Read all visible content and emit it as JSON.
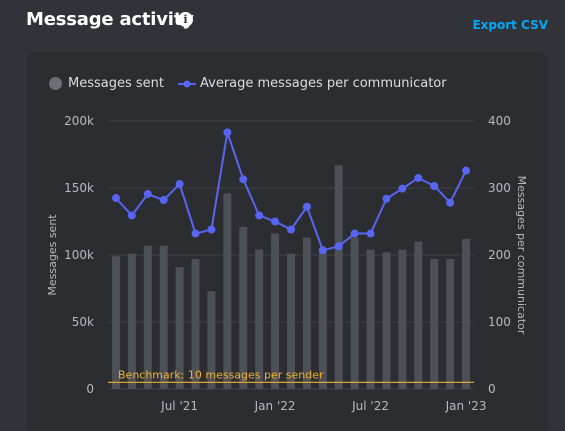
{
  "header": {
    "title": "Message activity",
    "info_icon": "info-icon",
    "export_label": "Export CSV"
  },
  "legend": {
    "series1": "Messages sent",
    "series2": "Average messages per communicator"
  },
  "colors": {
    "bar": "#4e5058",
    "line": "#5865f2",
    "benchmark": "#f0b232",
    "accent": "#00a8fc"
  },
  "chart_data": {
    "type": "bar",
    "ylabel": "Messages sent",
    "y2label": "Messages per communicator",
    "ylim": [
      0,
      200000
    ],
    "y2lim": [
      0,
      400
    ],
    "yticks": [
      "0",
      "50k",
      "100k",
      "150k",
      "200k"
    ],
    "y2ticks": [
      "0",
      "100",
      "200",
      "300",
      "400"
    ],
    "xtick_labels": [
      {
        "index": 4,
        "label": "Jul '21"
      },
      {
        "index": 10,
        "label": "Jan '22"
      },
      {
        "index": 16,
        "label": "Jul '22"
      },
      {
        "index": 22,
        "label": "Jan '23"
      }
    ],
    "series": [
      {
        "name": "Messages sent",
        "type": "bar",
        "values": [
          99000,
          101000,
          107000,
          107000,
          91000,
          97000,
          73000,
          146000,
          121000,
          104000,
          116000,
          101000,
          113000,
          104000,
          167000,
          113000,
          104000,
          102000,
          104000,
          110000,
          97000,
          97000,
          112000
        ]
      },
      {
        "name": "Average messages per communicator",
        "type": "line",
        "values": [
          285,
          259,
          291,
          282,
          306,
          232,
          238,
          383,
          313,
          259,
          250,
          238,
          272,
          207,
          213,
          232,
          232,
          284,
          299,
          315,
          303,
          278,
          326
        ]
      }
    ],
    "benchmark": {
      "label": "Benchmark: 10 messages per sender",
      "value": 5000
    },
    "grid": true
  }
}
